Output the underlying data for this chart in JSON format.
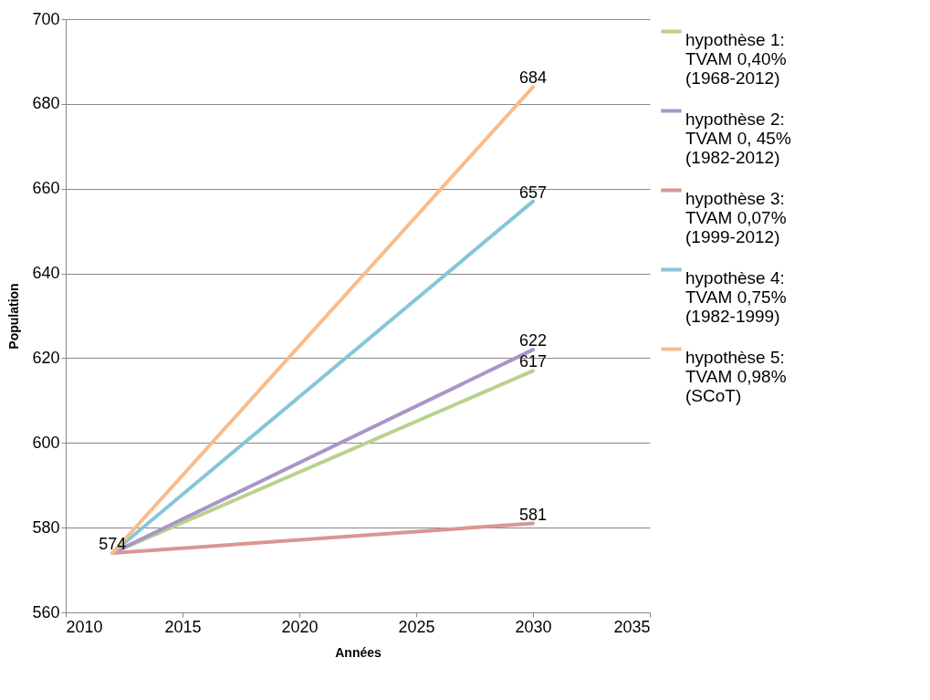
{
  "chart_data": {
    "type": "line",
    "xlabel": "Années",
    "ylabel": "Population",
    "x": [
      2012,
      2030
    ],
    "series": [
      {
        "name": "hypothèse 1: TVAM 0,40% (1968-2012)",
        "color": "#b9d28c",
        "values": [
          574,
          617
        ],
        "value_labels": [
          null,
          "617"
        ]
      },
      {
        "name": "hypothèse 2: TVAM 0, 45% (1982-2012)",
        "color": "#a995c7",
        "values": [
          574,
          622
        ],
        "value_labels": [
          null,
          "622"
        ]
      },
      {
        "name": "hypothèse 3: TVAM 0,07% (1999-2012)",
        "color": "#d99694",
        "values": [
          574,
          581
        ],
        "value_labels": [
          null,
          "581"
        ]
      },
      {
        "name": "hypothèse 4: TVAM 0,75% (1982-1999)",
        "color": "#86c6d9",
        "values": [
          574,
          657
        ],
        "value_labels": [
          null,
          "657"
        ]
      },
      {
        "name": "hypothèse 5: TVAM 0,98% (SCoT)",
        "color": "#f9bd8c",
        "values": [
          574,
          684
        ],
        "value_labels": [
          "574",
          "684"
        ]
      }
    ],
    "xlim": [
      2010,
      2035
    ],
    "xticks": [
      2010,
      2015,
      2020,
      2025,
      2030,
      2035
    ],
    "ylim": [
      560,
      700
    ],
    "yticks": [
      560,
      580,
      600,
      620,
      640,
      660,
      680,
      700
    ],
    "grid": "y",
    "legend": "right",
    "marker": "none",
    "line_style": "solid"
  }
}
